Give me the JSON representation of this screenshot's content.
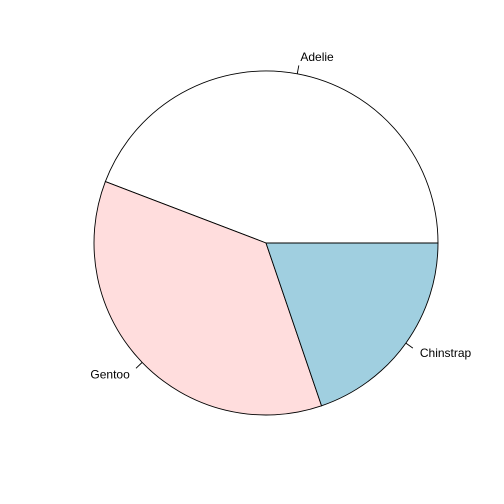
{
  "chart_data": {
    "type": "pie",
    "title": "",
    "direction": "counterclockwise",
    "start_angle_deg": 0,
    "slices": [
      {
        "label": "Adelie",
        "value": 152,
        "color": "#ffffff"
      },
      {
        "label": "Gentoo",
        "value": 124,
        "color": "#ffdddd"
      },
      {
        "label": "Chinstrap",
        "value": 68,
        "color": "#a0cfe0"
      }
    ]
  }
}
